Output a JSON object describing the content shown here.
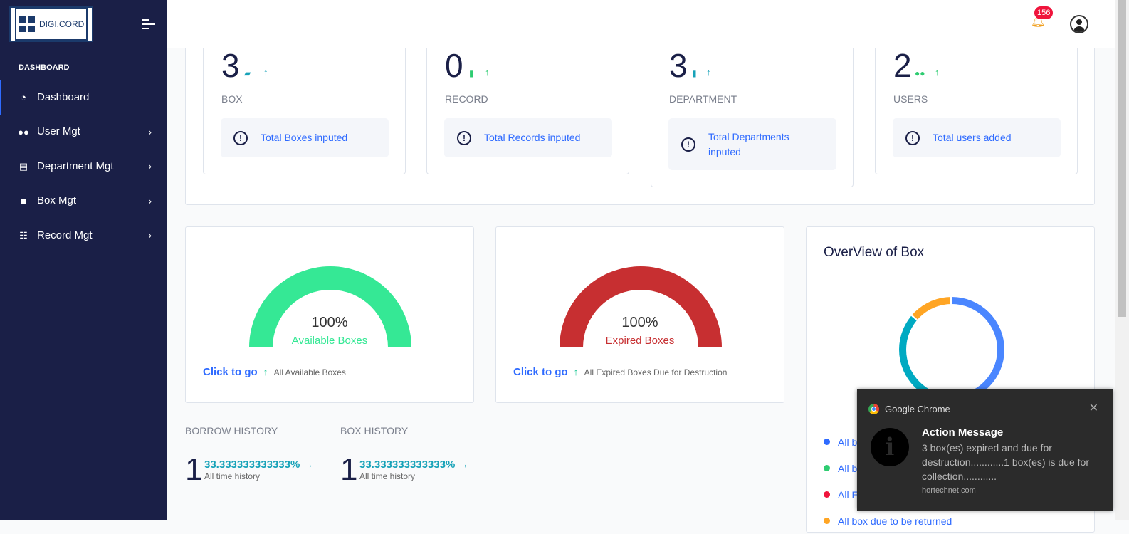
{
  "brand": {
    "logo_text": "DIGI.CORD"
  },
  "sidebar": {
    "section": "DASHBOARD",
    "items": [
      {
        "label": "Dashboard",
        "icon": "gauge-icon",
        "active": true
      },
      {
        "label": "User Mgt",
        "icon": "users-icon"
      },
      {
        "label": "Department Mgt",
        "icon": "warehouse-icon"
      },
      {
        "label": "Box Mgt",
        "icon": "box-icon"
      },
      {
        "label": "Record Mgt",
        "icon": "table-icon"
      }
    ]
  },
  "header": {
    "notification_count": "156"
  },
  "stats": [
    {
      "value": "3",
      "label": "BOX",
      "info": "Total Boxes inputed",
      "icon": "boxes-icon",
      "color": "#17a2b8"
    },
    {
      "value": "0",
      "label": "RECORD",
      "info": "Total Records inputed",
      "icon": "file-import-icon",
      "color": "#2ecc71"
    },
    {
      "value": "3",
      "label": "DEPARTMENT",
      "info": "Total Departments inputed",
      "icon": "building-icon",
      "color": "#17a2b8"
    },
    {
      "value": "2",
      "label": "USERS",
      "info": "Total users added",
      "icon": "users-icon",
      "color": "#2ecc71"
    }
  ],
  "gauges": [
    {
      "percent": "100%",
      "label": "Available Boxes",
      "color": "#35e895",
      "link": "Click to go",
      "desc": "All Available Boxes"
    },
    {
      "percent": "100%",
      "label": "Expired Boxes",
      "color": "#c72f31",
      "link": "Click to go",
      "desc": "All Expired Boxes Due for Destruction"
    }
  ],
  "history": [
    {
      "title": "BORROW HISTORY",
      "value": "1",
      "percent": "33.333333333333%",
      "sub": "All time history"
    },
    {
      "title": "BOX HISTORY",
      "value": "1",
      "percent": "33.333333333333%",
      "sub": "All time history"
    }
  ],
  "overview": {
    "title": "OverView of Box",
    "legend": [
      {
        "label": "All b",
        "color": "#2f6bff"
      },
      {
        "label": "All b",
        "color": "#2ecc71"
      },
      {
        "label": "All E",
        "color": "#f0143c"
      },
      {
        "label": "All box due to be returned",
        "color": "#ffa524"
      }
    ]
  },
  "toast": {
    "app": "Google Chrome",
    "title": "Action Message",
    "message": "3 box(es) expired and due for destruction............1 box(es) is due for collection............",
    "source": "hortechnet.com"
  }
}
